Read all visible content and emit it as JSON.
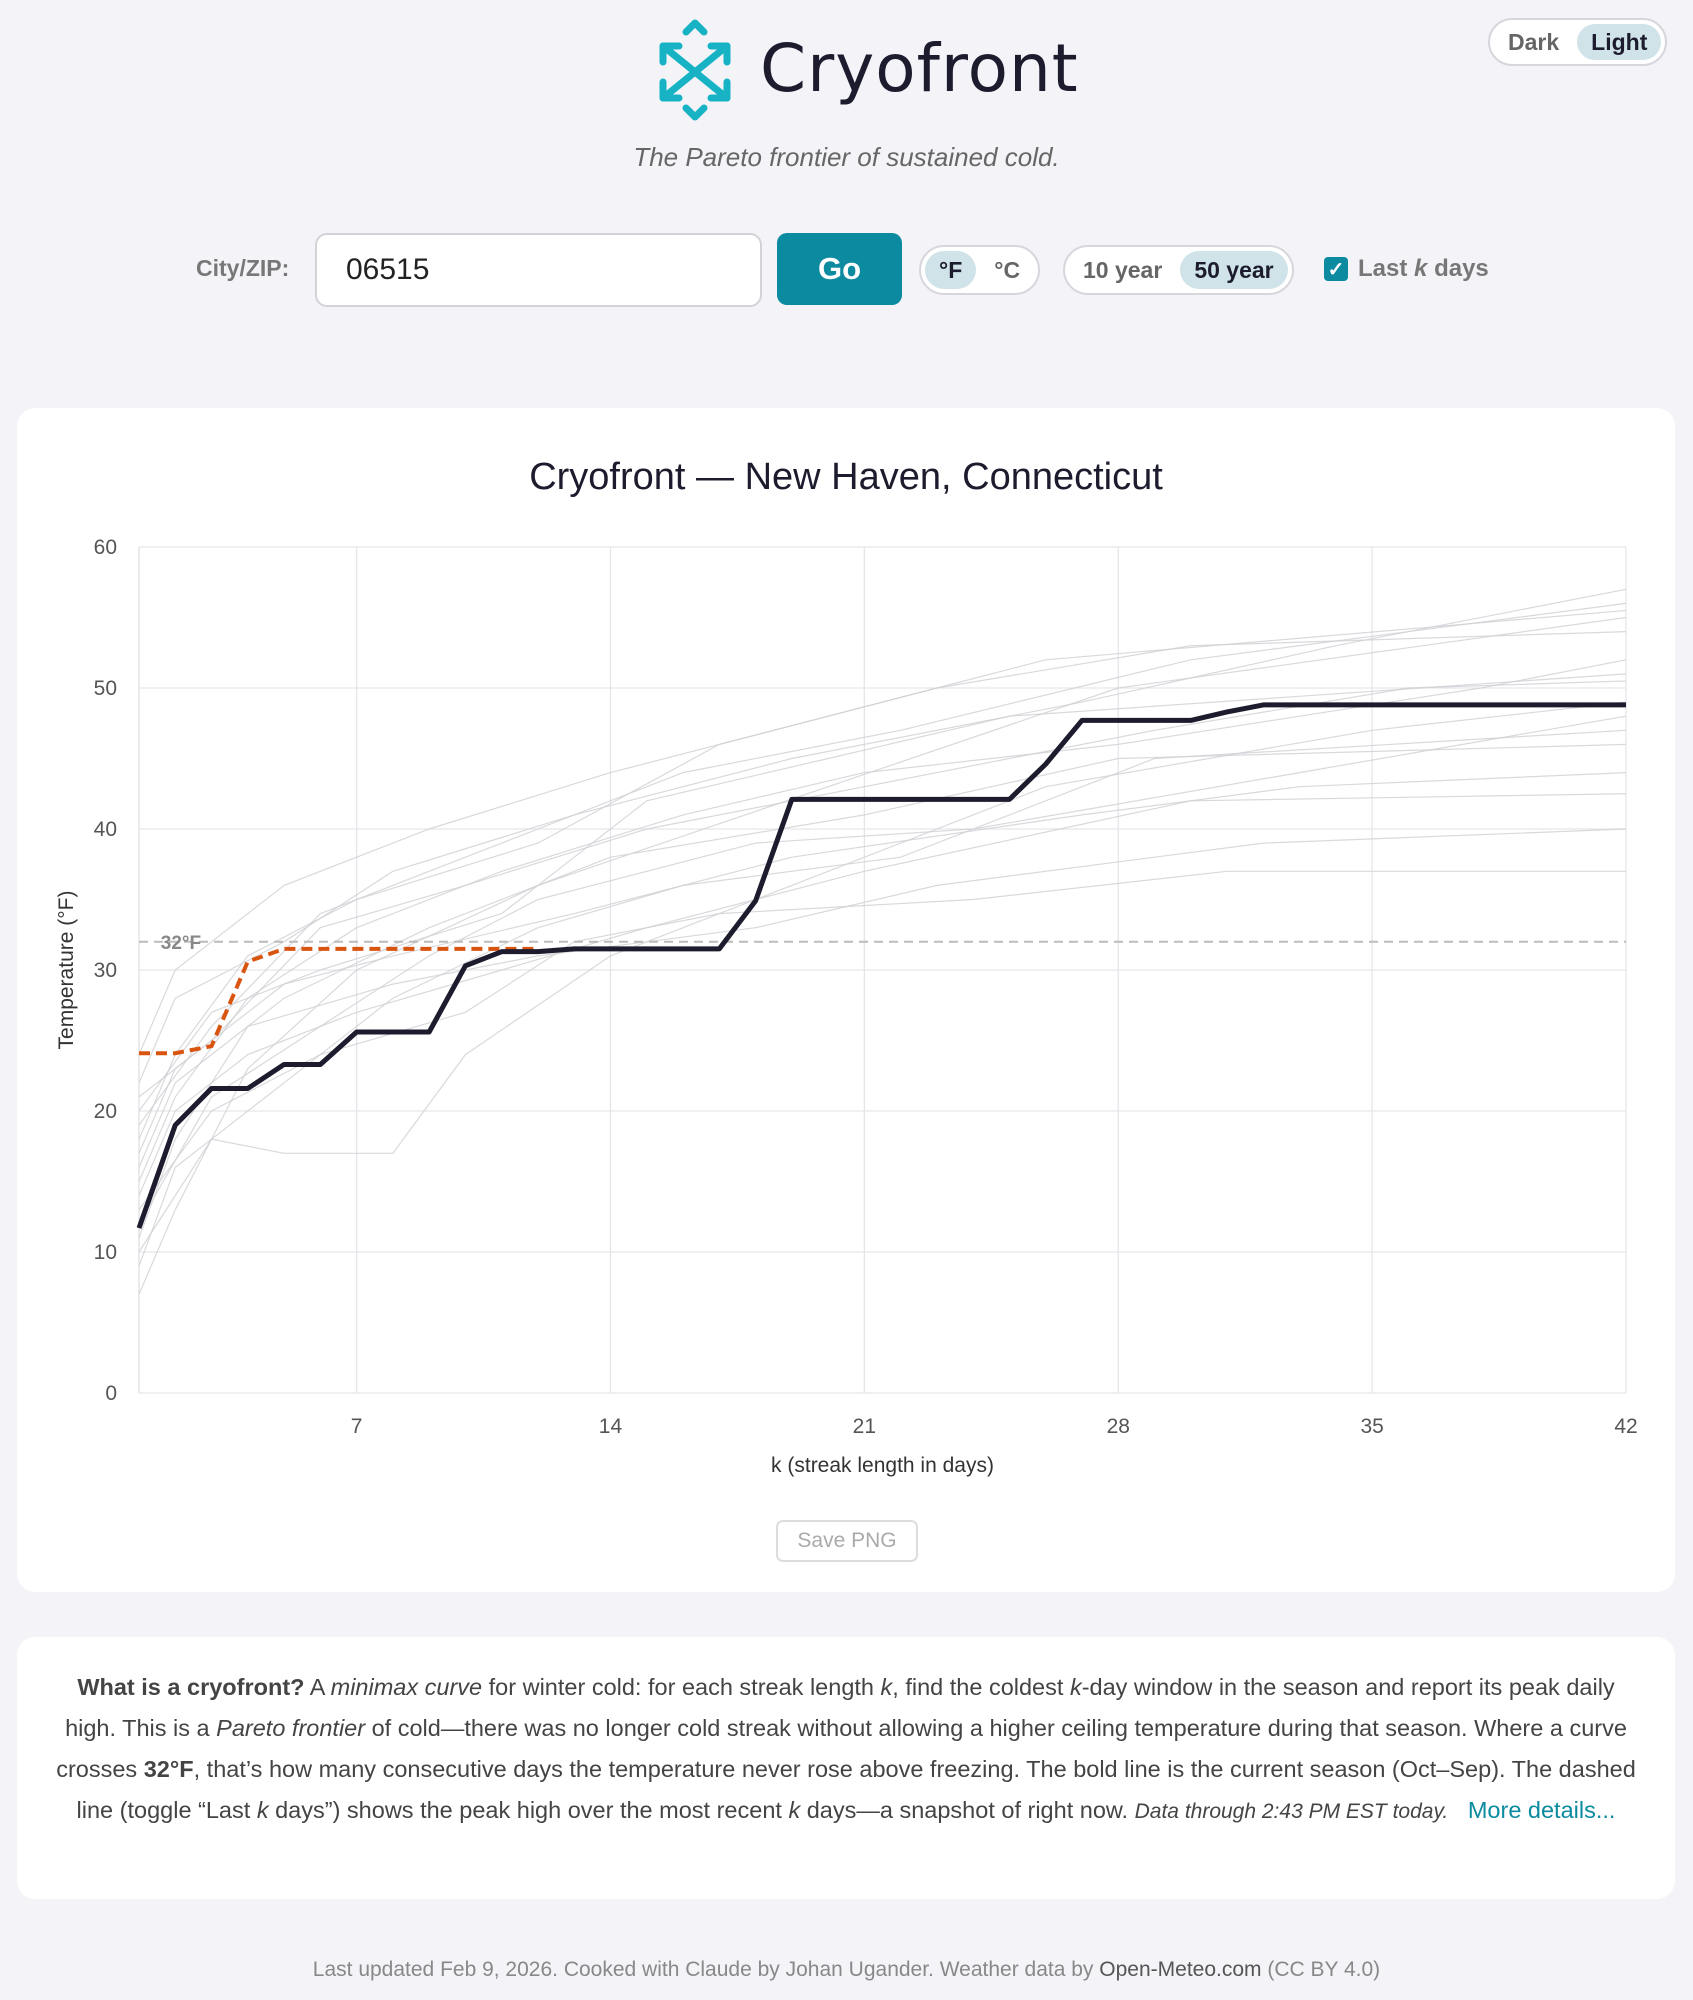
{
  "header": {
    "brand": "Cryofront",
    "tagline": "The Pareto frontier of sustained cold.",
    "theme_options": [
      "Dark",
      "Light"
    ],
    "theme_selected": "Light"
  },
  "controls": {
    "city_label": "City/ZIP:",
    "city_value": "06515",
    "go_label": "Go",
    "units": [
      "°F",
      "°C"
    ],
    "unit_selected": "°F",
    "ranges": [
      "10 year",
      "50 year"
    ],
    "range_selected": "50 year",
    "lastk_checked": true,
    "lastk_pre": "Last",
    "lastk_k": "k",
    "lastk_post": "days"
  },
  "colors": {
    "accent": "#0b8aa0",
    "current": "#1c1c2e",
    "lastk": "#d9540f",
    "history": "#cfcfd4"
  },
  "save_label": "Save PNG",
  "chart_data": {
    "type": "line",
    "title": "Cryofront — New Haven, Connecticut",
    "xlabel": "k (streak length in days)",
    "ylabel": "Temperature (°F)",
    "xlim": [
      1,
      42
    ],
    "ylim": [
      0,
      60
    ],
    "xticks": [
      7,
      14,
      21,
      28,
      35,
      42
    ],
    "yticks": [
      0,
      10,
      20,
      30,
      40,
      50,
      60
    ],
    "reference": {
      "y": 32,
      "label": "32°F"
    },
    "current_season": {
      "name": "Current season",
      "k": [
        1,
        2,
        3,
        4,
        5,
        6,
        7,
        8,
        9,
        10,
        11,
        12,
        13,
        14,
        15,
        16,
        17,
        18,
        19,
        20,
        21,
        22,
        23,
        24,
        25,
        26,
        27,
        28,
        29,
        30,
        31,
        32,
        33,
        34,
        35,
        36,
        37,
        38,
        39,
        40,
        41,
        42
      ],
      "values": [
        11.7,
        19,
        21.6,
        21.6,
        23.3,
        23.3,
        25.6,
        25.6,
        25.6,
        30.3,
        31.3,
        31.3,
        31.5,
        31.5,
        31.5,
        31.5,
        31.5,
        34.9,
        42.1,
        42.1,
        42.1,
        42.1,
        42.1,
        42.1,
        42.1,
        44.6,
        47.7,
        47.7,
        47.7,
        47.7,
        48.3,
        48.8,
        48.8,
        48.8,
        48.8,
        48.8,
        48.8,
        48.8,
        48.8,
        48.8,
        48.8,
        48.8
      ]
    },
    "last_k_days": {
      "name": "Last k days",
      "k": [
        1,
        2,
        3,
        4,
        5,
        6,
        7,
        8,
        9,
        10,
        11,
        12
      ],
      "values": [
        24.1,
        24.1,
        24.6,
        30.6,
        31.5,
        31.5,
        31.5,
        31.5,
        31.5,
        31.5,
        31.5,
        31.5
      ]
    },
    "history_breakpoints": [
      [
        [
          1,
          7
        ],
        [
          2,
          13
        ],
        [
          4,
          23
        ],
        [
          7,
          30
        ],
        [
          12,
          36
        ],
        [
          20,
          43
        ],
        [
          28,
          50
        ],
        [
          42,
          55
        ]
      ],
      [
        [
          1,
          10
        ],
        [
          3,
          18
        ],
        [
          5,
          17
        ],
        [
          8,
          17
        ],
        [
          10,
          24
        ],
        [
          14,
          31
        ],
        [
          19,
          36
        ],
        [
          26,
          43
        ],
        [
          35,
          47
        ],
        [
          42,
          49
        ]
      ],
      [
        [
          1,
          16
        ],
        [
          2,
          22
        ],
        [
          5,
          28
        ],
        [
          9,
          33
        ],
        [
          14,
          38
        ],
        [
          21,
          41
        ],
        [
          28,
          45
        ],
        [
          42,
          46
        ]
      ],
      [
        [
          1,
          19
        ],
        [
          3,
          26
        ],
        [
          6,
          34
        ],
        [
          10,
          38
        ],
        [
          16,
          44
        ],
        [
          22,
          47
        ],
        [
          30,
          52
        ],
        [
          42,
          56
        ]
      ],
      [
        [
          1,
          14
        ],
        [
          2,
          20
        ],
        [
          4,
          24
        ],
        [
          7,
          27
        ],
        [
          11,
          30
        ],
        [
          15,
          33
        ],
        [
          21,
          37
        ],
        [
          30,
          42
        ],
        [
          42,
          42.5
        ]
      ],
      [
        [
          1,
          22
        ],
        [
          2,
          28
        ],
        [
          5,
          32
        ],
        [
          8,
          37
        ],
        [
          13,
          41
        ],
        [
          19,
          45
        ],
        [
          27,
          49
        ],
        [
          34,
          53
        ],
        [
          42,
          57
        ]
      ],
      [
        [
          1,
          12
        ],
        [
          3,
          21
        ],
        [
          6,
          26
        ],
        [
          9,
          31
        ],
        [
          12,
          35
        ],
        [
          18,
          39
        ],
        [
          24,
          40
        ],
        [
          33,
          44
        ],
        [
          42,
          48
        ]
      ],
      [
        [
          1,
          18
        ],
        [
          2,
          24
        ],
        [
          4,
          31
        ],
        [
          7,
          35
        ],
        [
          12,
          39
        ],
        [
          17,
          46
        ],
        [
          23,
          50
        ],
        [
          30,
          53
        ],
        [
          42,
          54
        ]
      ],
      [
        [
          1,
          9
        ],
        [
          2,
          16
        ],
        [
          5,
          22
        ],
        [
          8,
          28
        ],
        [
          12,
          33
        ],
        [
          16,
          36
        ],
        [
          22,
          38
        ],
        [
          29,
          45
        ],
        [
          42,
          47
        ]
      ],
      [
        [
          1,
          20
        ],
        [
          3,
          27
        ],
        [
          6,
          30
        ],
        [
          11,
          34
        ],
        [
          15,
          42
        ],
        [
          20,
          45
        ],
        [
          25,
          48
        ],
        [
          42,
          51
        ]
      ],
      [
        [
          1,
          15
        ],
        [
          2,
          21
        ],
        [
          4,
          28
        ],
        [
          7,
          33
        ],
        [
          11,
          37
        ],
        [
          16,
          41
        ],
        [
          21,
          44
        ],
        [
          28,
          46
        ],
        [
          38,
          50
        ],
        [
          42,
          52
        ]
      ],
      [
        [
          1,
          24
        ],
        [
          2,
          30
        ],
        [
          5,
          36
        ],
        [
          9,
          40
        ],
        [
          14,
          44
        ],
        [
          20,
          48
        ],
        [
          26,
          52
        ],
        [
          42,
          55.5
        ]
      ],
      [
        [
          1,
          13
        ],
        [
          3,
          20
        ],
        [
          6,
          24
        ],
        [
          10,
          27
        ],
        [
          13,
          32
        ],
        [
          17,
          34
        ],
        [
          24,
          35
        ],
        [
          31,
          37
        ],
        [
          42,
          37
        ]
      ],
      [
        [
          1,
          17
        ],
        [
          2,
          23
        ],
        [
          5,
          29
        ],
        [
          8,
          31
        ],
        [
          13,
          34
        ],
        [
          19,
          38
        ],
        [
          27,
          41
        ],
        [
          33,
          43
        ],
        [
          42,
          44
        ]
      ],
      [
        [
          1,
          21
        ],
        [
          3,
          25
        ],
        [
          6,
          33
        ],
        [
          10,
          36
        ],
        [
          15,
          40
        ],
        [
          21,
          43
        ],
        [
          29,
          47
        ],
        [
          36,
          50
        ],
        [
          42,
          50.5
        ]
      ],
      [
        [
          1,
          11
        ],
        [
          2,
          18
        ],
        [
          4,
          26
        ],
        [
          8,
          29
        ],
        [
          12,
          31
        ],
        [
          18,
          33
        ],
        [
          23,
          36
        ],
        [
          32,
          39
        ],
        [
          42,
          40
        ]
      ]
    ]
  },
  "about": {
    "q": "What is a cryofront?",
    "t1": " A ",
    "em1": "minimax curve",
    "t2": " for winter cold: for each streak length ",
    "k1": "k",
    "t3": ", find the coldest ",
    "k2": "k",
    "t4": "-day window in the season and report its peak daily high. This is a ",
    "em2": "Pareto frontier",
    "t5": " of cold—there was no longer cold streak without allowing a higher ceiling temperature during that season. Where a curve crosses ",
    "b1": "32°F",
    "t6": ", that’s how many consecutive days the temperature never rose above freezing. The bold line is the current season (Oct–Sep). The dashed line (toggle “Last ",
    "k3": "k",
    "t7": " days”) shows the peak high over the most recent ",
    "k4": "k",
    "t8": " days—a snapshot of right now. ",
    "em3": "Data through 2:43 PM EST today.",
    "link": "More details..."
  },
  "footer": {
    "text": "Last updated Feb 9, 2026. Cooked with Claude by Johan Ugander. Weather data by ",
    "src": "Open-Meteo.com",
    "lic": " (CC BY 4.0)"
  }
}
